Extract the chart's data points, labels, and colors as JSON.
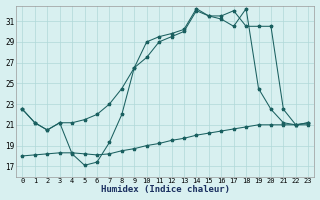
{
  "xlabel": "Humidex (Indice chaleur)",
  "bg_color": "#d8f0f0",
  "grid_color": "#b0d8d8",
  "line_color": "#1a6060",
  "xlim": [
    -0.5,
    23.5
  ],
  "ylim": [
    16.0,
    32.5
  ],
  "xticks": [
    0,
    1,
    2,
    3,
    4,
    5,
    6,
    7,
    8,
    9,
    10,
    11,
    12,
    13,
    14,
    15,
    16,
    17,
    18,
    19,
    20,
    21,
    22,
    23
  ],
  "yticks": [
    17,
    19,
    21,
    23,
    25,
    27,
    29,
    31
  ],
  "line1_x": [
    0,
    1,
    2,
    3,
    4,
    5,
    6,
    7,
    8,
    9,
    10,
    11,
    12,
    13,
    14,
    15,
    16,
    17,
    18,
    19,
    20,
    21,
    22,
    23
  ],
  "line1_y": [
    22.5,
    21.2,
    20.5,
    21.2,
    18.2,
    17.1,
    17.4,
    19.3,
    22.0,
    26.5,
    29.0,
    29.5,
    29.8,
    30.2,
    32.2,
    31.5,
    31.2,
    30.5,
    32.2,
    24.5,
    22.5,
    21.2,
    21.0,
    21.2
  ],
  "line2_x": [
    0,
    1,
    2,
    3,
    4,
    5,
    6,
    7,
    8,
    9,
    10,
    11,
    12,
    13,
    14,
    15,
    16,
    17,
    18,
    19,
    20,
    21,
    22,
    23
  ],
  "line2_y": [
    22.5,
    21.2,
    20.5,
    21.2,
    21.2,
    21.5,
    22.0,
    23.0,
    24.5,
    26.5,
    27.5,
    29.0,
    29.5,
    30.0,
    32.0,
    31.5,
    31.5,
    32.0,
    30.5,
    30.5,
    30.5,
    22.5,
    21.0,
    21.2
  ],
  "line3_x": [
    0,
    1,
    2,
    3,
    4,
    5,
    6,
    7,
    8,
    9,
    10,
    11,
    12,
    13,
    14,
    15,
    16,
    17,
    18,
    19,
    20,
    21,
    22,
    23
  ],
  "line3_y": [
    18.0,
    18.1,
    18.2,
    18.3,
    18.3,
    18.2,
    18.1,
    18.2,
    18.5,
    18.7,
    19.0,
    19.2,
    19.5,
    19.7,
    20.0,
    20.2,
    20.4,
    20.6,
    20.8,
    21.0,
    21.0,
    21.0,
    21.0,
    21.0
  ]
}
